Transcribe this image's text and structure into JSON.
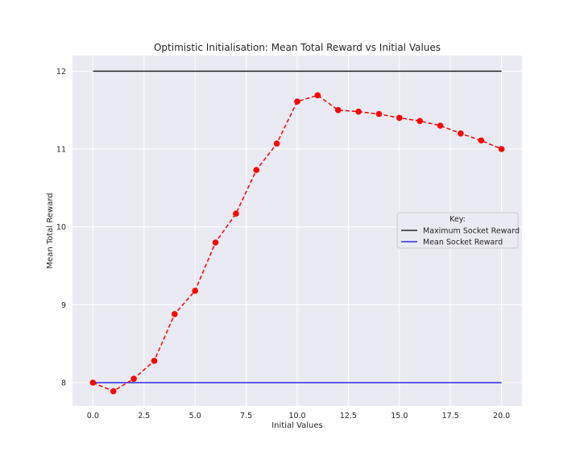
{
  "chart_data": {
    "type": "line",
    "title": "Optimistic Initialisation: Mean Total Reward vs Initial Values",
    "xlabel": "Initial Values",
    "ylabel": "Mean Total Reward",
    "xlim": [
      -1.0,
      21.0
    ],
    "ylim": [
      7.7,
      12.2
    ],
    "x_ticks": [
      0.0,
      2.5,
      5.0,
      7.5,
      10.0,
      12.5,
      15.0,
      17.5,
      20.0
    ],
    "x_tick_labels": [
      "0.0",
      "2.5",
      "5.0",
      "7.5",
      "10.0",
      "12.5",
      "15.0",
      "17.5",
      "20.0"
    ],
    "y_ticks": [
      8,
      9,
      10,
      11,
      12
    ],
    "y_tick_labels": [
      "8",
      "9",
      "10",
      "11",
      "12"
    ],
    "grid": true,
    "series": [
      {
        "style": "dashed-markers",
        "color": "#ff0000",
        "x": [
          0,
          1,
          2,
          3,
          4,
          5,
          6,
          7,
          8,
          9,
          10,
          11,
          12,
          13,
          14,
          15,
          16,
          17,
          18,
          19,
          20
        ],
        "values": [
          8.0,
          7.89,
          8.05,
          8.28,
          8.88,
          9.18,
          9.8,
          10.17,
          10.73,
          11.07,
          11.61,
          11.69,
          11.5,
          11.48,
          11.45,
          11.4,
          11.36,
          11.3,
          11.2,
          11.11,
          11.0
        ]
      },
      {
        "name": "Maximum Socket Reward",
        "style": "solid",
        "color": "#262626",
        "x": [
          0,
          20
        ],
        "values": [
          12.0,
          12.0
        ]
      },
      {
        "name": "Mean Socket Reward",
        "style": "solid",
        "color": "#2a2aee",
        "x": [
          0,
          20
        ],
        "values": [
          8.0,
          8.0
        ]
      }
    ],
    "legend": {
      "title": "Key:",
      "placement": "center-right",
      "entries": [
        "Maximum Socket Reward",
        "Mean Socket Reward"
      ]
    }
  }
}
